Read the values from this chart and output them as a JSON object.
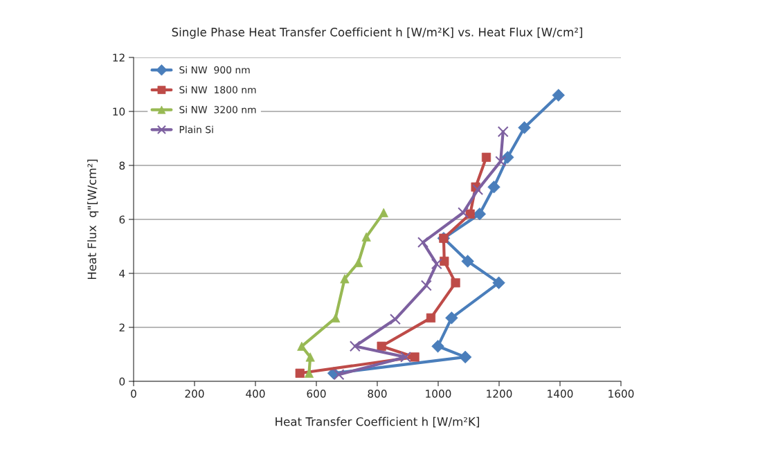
{
  "chart_data": {
    "type": "line",
    "title": "Single Phase Heat Transfer Coefficient h [W/m²K] vs. Heat Flux [W/cm²]",
    "xlabel": "Heat Transfer Coefficient h [W/m²K]",
    "ylabel": "Heat Flux  q\"[W/cm²]",
    "xlim": [
      0,
      1600
    ],
    "xticks": [
      0,
      200,
      400,
      600,
      800,
      1000,
      1200,
      1400,
      1600
    ],
    "ylim": [
      0,
      12
    ],
    "yticks": [
      0,
      2,
      4,
      6,
      8,
      10,
      12
    ],
    "grid": "y",
    "legend": "top left",
    "series": [
      {
        "name": "Si NW  900 nm",
        "color": "#4a7ebb",
        "marker": "diamond",
        "x": [
          657,
          1089,
          999,
          1044,
          1199,
          1097,
          1018,
          1136,
          1183,
          1228,
          1283,
          1395
        ],
        "values": [
          0.3,
          0.9,
          1.3,
          2.35,
          3.65,
          4.45,
          5.3,
          6.2,
          7.2,
          8.3,
          9.4,
          10.6
        ]
      },
      {
        "name": "Si NW  1800 nm",
        "color": "#be4b48",
        "marker": "square",
        "x": [
          546,
          923,
          814,
          976,
          1057,
          1020,
          1018,
          1105,
          1123,
          1158
        ],
        "values": [
          0.3,
          0.9,
          1.3,
          2.35,
          3.65,
          4.45,
          5.3,
          6.2,
          7.2,
          8.3
        ]
      },
      {
        "name": "Si NW  3200 nm",
        "color": "#98b954",
        "marker": "triangle",
        "x": [
          576,
          580,
          552,
          663,
          693,
          738,
          764,
          821
        ],
        "values": [
          0.3,
          0.9,
          1.3,
          2.35,
          3.8,
          4.4,
          5.35,
          6.25
        ]
      },
      {
        "name": "Plain Si",
        "color": "#7d60a0",
        "marker": "cross",
        "x": [
          674,
          893,
          727,
          859,
          961,
          995,
          950,
          1082,
          1130,
          1205,
          1213
        ],
        "values": [
          0.25,
          0.9,
          1.3,
          2.3,
          3.55,
          4.35,
          5.15,
          6.25,
          7.1,
          8.15,
          9.25
        ]
      }
    ]
  }
}
